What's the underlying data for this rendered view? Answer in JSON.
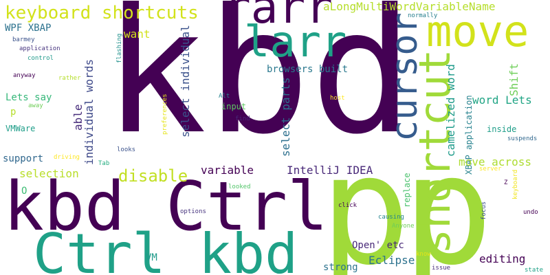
{
  "words": {
    "kbd_big": {
      "text": "kbd",
      "color": "#440154"
    },
    "p_a": {
      "text": "p",
      "color": "#a0da39"
    },
    "p_b": {
      "text": "p",
      "color": "#a0da39"
    },
    "kbd_ctrl": {
      "text": "kbd Ctrl",
      "color": "#440154"
    },
    "ctrl_kbd": {
      "text": "Ctrl kbd",
      "color": "#1fa187"
    },
    "rarr": {
      "text": "rarr",
      "color": "#440154"
    },
    "larr": {
      "text": "larr",
      "color": "#1fa187"
    },
    "move": {
      "text": "move",
      "color": "#d2e21b"
    },
    "cursor": {
      "text": "cursor",
      "color": "#365c8d"
    },
    "shortcut": {
      "text": "shortcut",
      "color": "#a0da39"
    },
    "keyboard_shortcuts": {
      "text": "keyboard shortcuts",
      "color": "#d2e21b"
    },
    "along": {
      "text": "aLongMultiWordVariableName",
      "color": "#b5de2b"
    },
    "normally": {
      "text": "normally",
      "color": "#277f8e"
    },
    "wpf": {
      "text": "WPF XBAP",
      "color": "#2c728e"
    },
    "barmey": {
      "text": "barmey",
      "color": "#3b528b"
    },
    "application": {
      "text": "application",
      "color": "#46337e"
    },
    "control": {
      "text": "control",
      "color": "#1f9a8a"
    },
    "anyway": {
      "text": "anyway",
      "color": "#440154"
    },
    "rather": {
      "text": "rather",
      "color": "#b5de2b"
    },
    "flashing": {
      "text": "flashing",
      "color": "#21918c"
    },
    "want": {
      "text": "want",
      "color": "#d2e21b"
    },
    "individual_vert": {
      "text": "individual words",
      "color": "#3e4989"
    },
    "lets_say": {
      "text": "Lets say",
      "color": "#35b779"
    },
    "p_small": {
      "text": "p",
      "color": "#b5de2b"
    },
    "away": {
      "text": "away",
      "color": "#6ece58"
    },
    "vmware": {
      "text": "VMWare",
      "color": "#1f9e89"
    },
    "able": {
      "text": "able",
      "color": "#472d7b"
    },
    "support": {
      "text": "support",
      "color": "#31688e"
    },
    "driving": {
      "text": "driving",
      "color": "#fde725"
    },
    "tab": {
      "text": "Tab",
      "color": "#26ad81"
    },
    "selection": {
      "text": "selection",
      "color": "#b8de29"
    },
    "o": {
      "text": "O",
      "color": "#3dbc74"
    },
    "disable": {
      "text": "disable",
      "color": "#c2df23"
    },
    "looks": {
      "text": "looks",
      "color": "#3b528b"
    },
    "preferences": {
      "text": "preferences",
      "color": "#e5e419"
    },
    "select_individual": {
      "text": "select individual",
      "color": "#3b528b"
    },
    "alt": {
      "text": "Alt",
      "color": "#25848e"
    },
    "input": {
      "text": "input",
      "color": "#5ec962"
    },
    "find": {
      "text": "find",
      "color": "#482878"
    },
    "browsers_built": {
      "text": "browsers built",
      "color": "#2a788e"
    },
    "select_parts": {
      "text": "select parts",
      "color": "#2d708e"
    },
    "host": {
      "text": "host",
      "color": "#fde725"
    },
    "variable": {
      "text": "variable",
      "color": "#440154"
    },
    "intellij": {
      "text": "IntelliJ IDEA",
      "color": "#482878"
    },
    "camelized": {
      "text": "camelized word",
      "color": "#1e9b8a"
    },
    "xbap_app": {
      "text": "XBAP application",
      "color": "#26828e"
    },
    "word_lets": {
      "text": "word Lets",
      "color": "#21a585"
    },
    "shift": {
      "text": "Shift",
      "color": "#6ece58"
    },
    "inside": {
      "text": "inside",
      "color": "#1f9e89"
    },
    "suspends": {
      "text": "suspends",
      "color": "#31688e"
    },
    "replace": {
      "text": "replace",
      "color": "#4ac16d"
    },
    "move_across": {
      "text": "move across",
      "color": "#addc30"
    },
    "server": {
      "text": "server",
      "color": "#fde725"
    },
    "z": {
      "text": "Z",
      "color": "#440154"
    },
    "keyboard_small": {
      "text": "keyboard",
      "color": "#f1e51d"
    },
    "looked": {
      "text": "looked",
      "color": "#52c569"
    },
    "click": {
      "text": "click",
      "color": "#440154"
    },
    "focus": {
      "text": "focus",
      "color": "#3b528b"
    },
    "undo": {
      "text": "undo",
      "color": "#440154"
    },
    "options": {
      "text": "options",
      "color": "#46337e"
    },
    "causing": {
      "text": "causing",
      "color": "#25848e"
    },
    "anyone": {
      "text": "Anyone",
      "color": "#6ece58"
    },
    "open_etc": {
      "text": "Open' etc",
      "color": "#482878"
    },
    "vm": {
      "text": "VM",
      "color": "#1f9a8a"
    },
    "know": {
      "text": "know",
      "color": "#e5e419"
    },
    "eclipse": {
      "text": "Eclipse",
      "color": "#2c728e"
    },
    "editing": {
      "text": "editing",
      "color": "#440154"
    },
    "strong": {
      "text": "strong",
      "color": "#2c728e"
    },
    "issue": {
      "text": "issue",
      "color": "#472d7b"
    },
    "state": {
      "text": "state",
      "color": "#1fa187"
    }
  }
}
